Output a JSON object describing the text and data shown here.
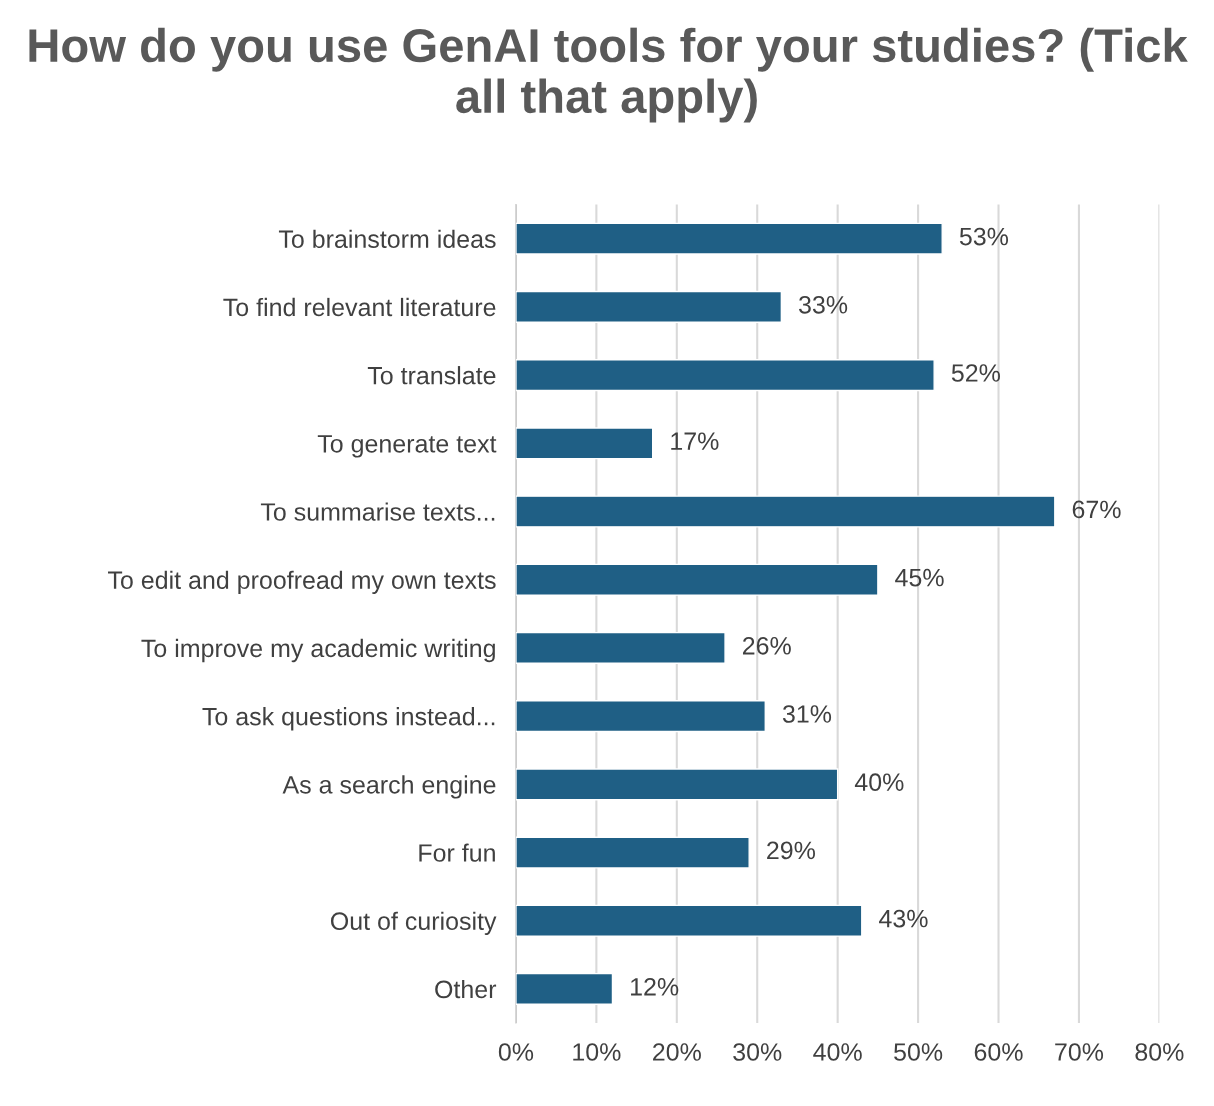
{
  "chart_data": {
    "type": "bar",
    "orientation": "horizontal",
    "title": "How do you use GenAI tools for your studies? (Tick all that apply)",
    "categories": [
      "To brainstorm ideas",
      "To find relevant literature",
      "To translate",
      "To generate text",
      "To summarise texts...",
      "To edit and proofread my own texts",
      "To improve my academic writing",
      "To ask questions instead...",
      "As a search engine",
      "For fun",
      "Out of curiosity",
      "Other"
    ],
    "values": [
      53,
      33,
      52,
      17,
      67,
      45,
      26,
      31,
      40,
      29,
      43,
      12
    ],
    "value_labels": [
      "53%",
      "33%",
      "52%",
      "17%",
      "67%",
      "45%",
      "26%",
      "31%",
      "40%",
      "29%",
      "43%",
      "12%"
    ],
    "color": "#1f5f85",
    "xlim": [
      0,
      80
    ],
    "xticks": [
      {
        "value": 0,
        "label": "0%"
      },
      {
        "value": 10,
        "label": "10%"
      },
      {
        "value": 20,
        "label": "20%"
      },
      {
        "value": 30,
        "label": "30%"
      },
      {
        "value": 40,
        "label": "40%"
      },
      {
        "value": 50,
        "label": "50%"
      },
      {
        "value": 60,
        "label": "60%"
      },
      {
        "value": 70,
        "label": "70%"
      },
      {
        "value": 80,
        "label": "80%"
      }
    ],
    "grid": "x",
    "legend": false
  }
}
